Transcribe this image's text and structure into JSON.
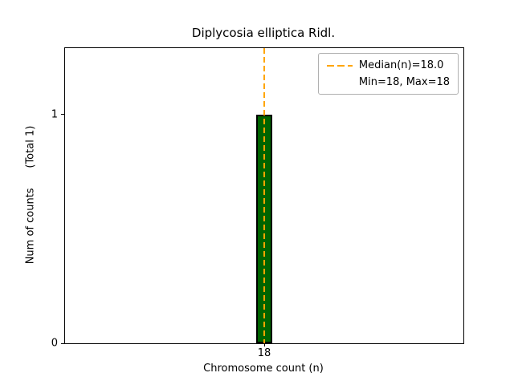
{
  "title": "Diplycosia elliptica Ridl.",
  "axes": {
    "xlabel": "Chromosome count (n)",
    "ylabel": "Num of counts      (Total 1)"
  },
  "legend": {
    "line1": "Median(n)=18.0",
    "line2": "Min=18, Max=18"
  },
  "ticks": {
    "x": [
      "18"
    ],
    "y": [
      "0",
      "1"
    ]
  },
  "chart_data": {
    "type": "bar",
    "title": "Diplycosia elliptica Ridl.",
    "xlabel": "Chromosome count (n)",
    "ylabel": "Num of counts (Total 1)",
    "categories": [
      18
    ],
    "values": [
      1
    ],
    "total_counts": 1,
    "bar_width": 0.4,
    "bar_color": "#006400",
    "bar_edge_color": "#000000",
    "median_line": {
      "x": 18,
      "color": "#FFA500",
      "style": "dashed",
      "label": "Median(n)=18.0"
    },
    "min": 18,
    "max": 18,
    "annotations": [
      "Min=18, Max=18"
    ],
    "xlim": [
      13,
      23
    ],
    "ylim": [
      0,
      1.29
    ],
    "xticks": [
      18
    ],
    "yticks": [
      0,
      1
    ],
    "grid": false,
    "legend_position": "upper right"
  }
}
